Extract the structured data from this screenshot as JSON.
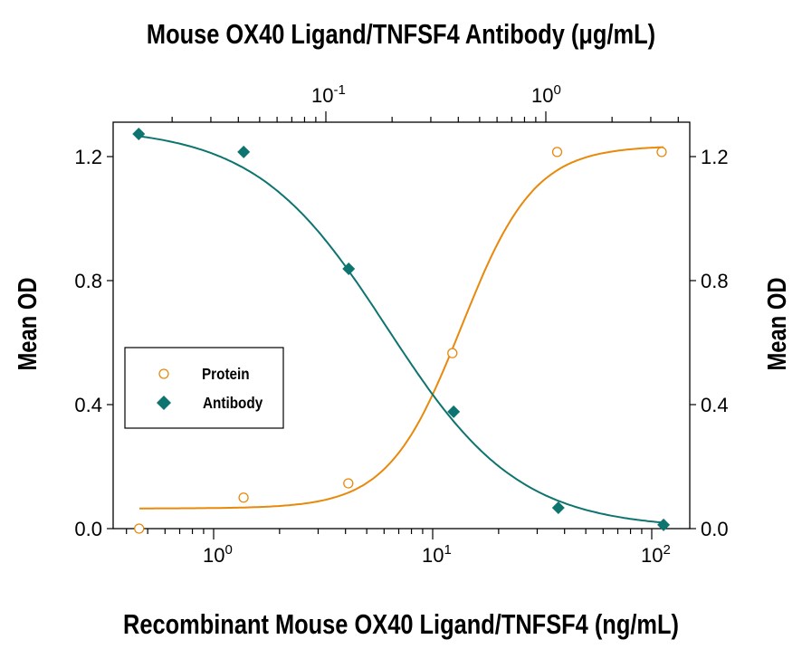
{
  "chart_data": {
    "type": "scatter",
    "title": "Mouse OX40 Ligand/TNFSF4 Antibody (μg/mL)",
    "xlabel": "Recombinant Mouse OX40 Ligand/TNFSF4 (ng/mL)",
    "ylabel": "Mean OD",
    "ylabel_right": "Mean OD",
    "x_scale": "log",
    "x_ticks": [
      {
        "base": "10",
        "exp": "0",
        "value": 1
      },
      {
        "base": "10",
        "exp": "1",
        "value": 10
      },
      {
        "base": "10",
        "exp": "2",
        "value": 100
      }
    ],
    "x_top_scale": "log",
    "x_top_ticks": [
      {
        "base": "10",
        "exp": "-1",
        "value": 0.1
      },
      {
        "base": "10",
        "exp": "0",
        "value": 1
      }
    ],
    "ylim": [
      0,
      1.3
    ],
    "y_ticks": [
      "0.0",
      "0.4",
      "0.8",
      "1.2"
    ],
    "grid": false,
    "legend_placement": "center-left",
    "series": [
      {
        "name": "Protein",
        "axis": "bottom",
        "marker": "open-circle",
        "color": "#E8890C",
        "x": [
          0.457,
          1.37,
          4.12,
          12.3,
          37,
          111
        ],
        "y": [
          0.0,
          0.1,
          0.146,
          0.566,
          1.215,
          1.215
        ]
      },
      {
        "name": "Antibody",
        "axis": "top",
        "marker": "filled-diamond",
        "color": "#0E7470",
        "x": [
          0.0141,
          0.0423,
          0.127,
          0.381,
          1.14,
          3.43
        ],
        "y": [
          1.273,
          1.215,
          0.838,
          0.377,
          0.067,
          0.012
        ]
      }
    ]
  }
}
